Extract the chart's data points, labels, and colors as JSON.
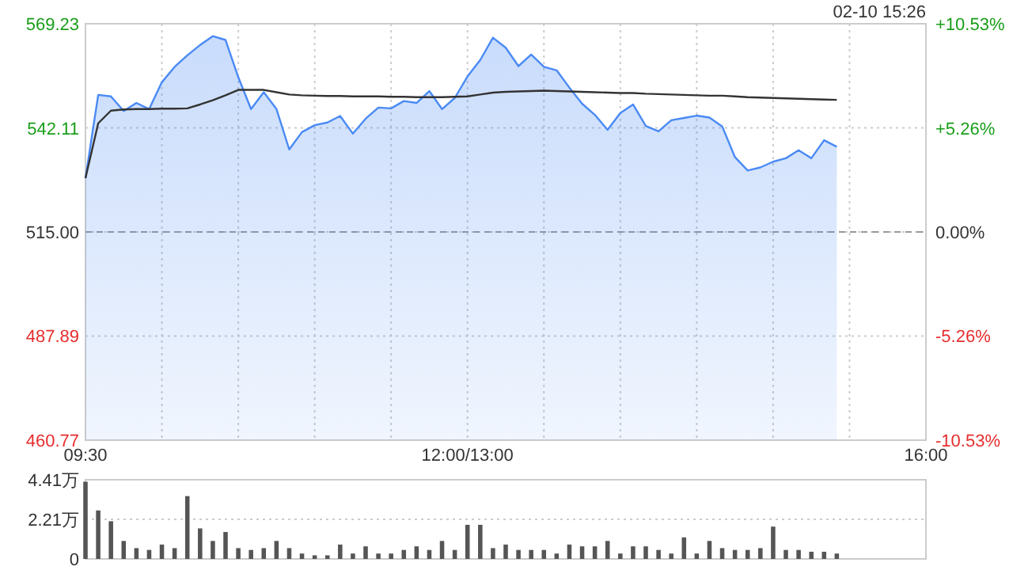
{
  "chart_data": [
    {
      "type": "area",
      "title": "02-10 15:26",
      "categories": [
        "09:30",
        null,
        null,
        null,
        null,
        null,
        null,
        null,
        null,
        null,
        null,
        null,
        null,
        null,
        null,
        null,
        null,
        null,
        null,
        null,
        null,
        null,
        null,
        null,
        null,
        null,
        null,
        null,
        null,
        null,
        "12:00/13:00",
        null,
        null,
        null,
        null,
        null,
        null,
        null,
        null,
        null,
        null,
        null,
        null,
        null,
        null,
        null,
        null,
        null,
        null,
        null,
        null,
        null,
        null,
        null,
        null,
        null,
        null,
        null,
        null,
        null,
        null,
        null,
        null,
        null,
        null,
        null,
        "16:00"
      ],
      "ylim": [
        460.77,
        569.23
      ],
      "yticks": [
        460.77,
        487.89,
        {
          "value": 515,
          "label": "515.00"
        },
        542.11,
        569.23
      ],
      "y2lim": [
        -10.53,
        10.53
      ],
      "y2ticks": [
        {
          "value": -10.53,
          "label": "-10.53%"
        },
        {
          "value": -5.26,
          "label": "-5.26%"
        },
        {
          "value": 0,
          "label": "0.00%"
        },
        {
          "value": 5.26,
          "label": "+5.26%"
        },
        {
          "value": 10.53,
          "label": "+10.53%"
        }
      ],
      "grid": true,
      "ref_lines": [
        {
          "axis": "y",
          "value": 515,
          "color": "#999999",
          "line_style": "dashed"
        }
      ],
      "series": [
        {
          "color": "#4a8af4",
          "values": [
            529.0,
            550.7,
            550.3,
            546.5,
            548.6,
            547.0,
            554.0,
            558.0,
            561.0,
            563.7,
            566.0,
            565.0,
            555.3,
            547.0,
            551.4,
            547.0,
            536.5,
            541.0,
            542.8,
            543.5,
            545.2,
            540.6,
            544.5,
            547.4,
            547.2,
            549.1,
            548.6,
            551.7,
            547.0,
            549.9,
            555.5,
            559.8,
            565.6,
            563.0,
            558.2,
            561.2,
            558.0,
            557.1,
            552.6,
            548.4,
            545.5,
            541.6,
            546.0,
            548.2,
            542.6,
            541.2,
            544.1,
            544.7,
            545.3,
            544.8,
            542.5,
            534.5,
            531.0,
            531.8,
            533.3,
            534.2,
            536.3,
            534.2,
            538.9,
            537.2,
            null,
            null,
            null,
            null,
            null,
            null,
            null
          ]
        },
        {
          "type": "line",
          "color": "#333333",
          "values": [
            529.0,
            543.3,
            546.6,
            546.9,
            547.0,
            547.0,
            547.1,
            547.1,
            547.2,
            548.2,
            549.3,
            550.6,
            552.0,
            552.0,
            552.0,
            551.4,
            550.8,
            550.6,
            550.5,
            550.4,
            550.4,
            550.3,
            550.3,
            550.3,
            550.2,
            550.2,
            550.1,
            550.1,
            550.1,
            550.2,
            550.3,
            550.8,
            551.3,
            551.5,
            551.6,
            551.7,
            551.8,
            551.7,
            551.6,
            551.5,
            551.4,
            551.3,
            551.2,
            551.2,
            551.0,
            550.9,
            550.8,
            550.7,
            550.6,
            550.5,
            550.5,
            550.3,
            550.1,
            550.0,
            549.9,
            549.8,
            549.7,
            549.6,
            549.5,
            549.4,
            null,
            null,
            null,
            null,
            null,
            null,
            null
          ]
        }
      ]
    },
    {
      "type": "bar",
      "tick_labels": "y",
      "categories": [
        null,
        null,
        null,
        null,
        null,
        null,
        null,
        null,
        null,
        null,
        null,
        null,
        null,
        null,
        null,
        null,
        null,
        null,
        null,
        null,
        null,
        null,
        null,
        null,
        null,
        null,
        null,
        null,
        null,
        null,
        null,
        null,
        null,
        null,
        null,
        null,
        null,
        null,
        null,
        null,
        null,
        null,
        null,
        null,
        null,
        null,
        null,
        null,
        null,
        null,
        null,
        null,
        null,
        null,
        null,
        null,
        null,
        null,
        null,
        null,
        null,
        null,
        null,
        null,
        null,
        null,
        null
      ],
      "ylim": [
        0,
        4.41
      ],
      "yticks": [
        {
          "value": 0,
          "label": "0"
        },
        {
          "value": 2.21,
          "label": "2.21万"
        },
        {
          "value": 4.41,
          "label": "4.41万"
        }
      ],
      "grid": "y",
      "series": [
        {
          "color": "#555555",
          "values": [
            4.3,
            2.7,
            2.1,
            1.0,
            0.6,
            0.5,
            0.8,
            0.6,
            3.5,
            1.7,
            1.0,
            1.5,
            0.6,
            0.5,
            0.6,
            1.0,
            0.6,
            0.3,
            0.2,
            0.2,
            0.8,
            0.3,
            0.7,
            0.3,
            0.3,
            0.5,
            0.7,
            0.5,
            1.0,
            0.5,
            1.9,
            1.9,
            0.6,
            0.8,
            0.5,
            0.5,
            0.5,
            0.3,
            0.8,
            0.7,
            0.7,
            1.0,
            0.3,
            0.7,
            0.7,
            0.5,
            0.3,
            1.2,
            0.3,
            1.0,
            0.6,
            0.5,
            0.5,
            0.6,
            1.8,
            0.5,
            0.5,
            0.4,
            0.4,
            0.3,
            null,
            null,
            null,
            null,
            null,
            null,
            null
          ]
        }
      ]
    }
  ]
}
